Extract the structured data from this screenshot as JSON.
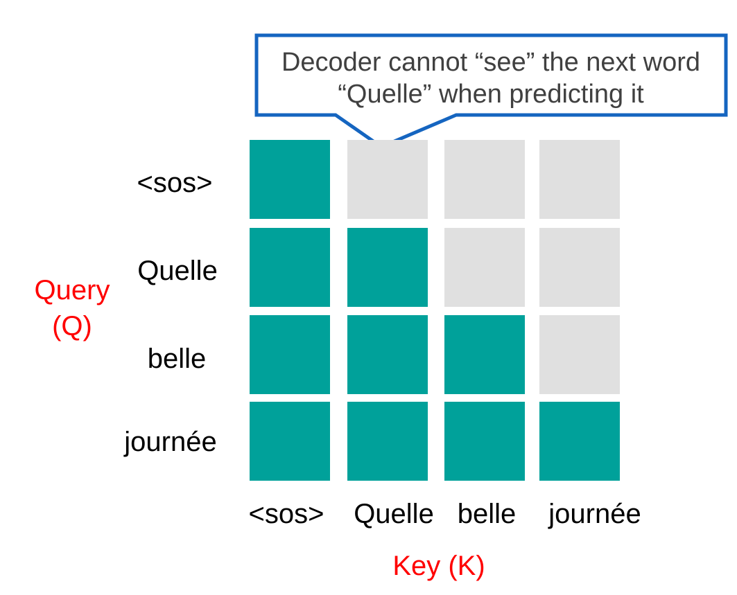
{
  "callout": {
    "line1": "Decoder cannot “see” the next word",
    "line2": "“Quelle” when predicting it",
    "border_color": "#1565c0"
  },
  "matrix": {
    "rows": [
      "<sos>",
      "Quelle",
      "belle",
      "journée"
    ],
    "cols": [
      "<sos>",
      "Quelle",
      "belle",
      "journée"
    ],
    "cells": [
      [
        1,
        0,
        0,
        0
      ],
      [
        1,
        1,
        0,
        0
      ],
      [
        1,
        1,
        1,
        0
      ],
      [
        1,
        1,
        1,
        1
      ]
    ],
    "visible_color": "#00a19a",
    "masked_color": "#e0e0e0"
  },
  "axes": {
    "query_line1": "Query",
    "query_line2": "(Q)",
    "key": "Key (K)",
    "label_color": "#ff0000"
  }
}
